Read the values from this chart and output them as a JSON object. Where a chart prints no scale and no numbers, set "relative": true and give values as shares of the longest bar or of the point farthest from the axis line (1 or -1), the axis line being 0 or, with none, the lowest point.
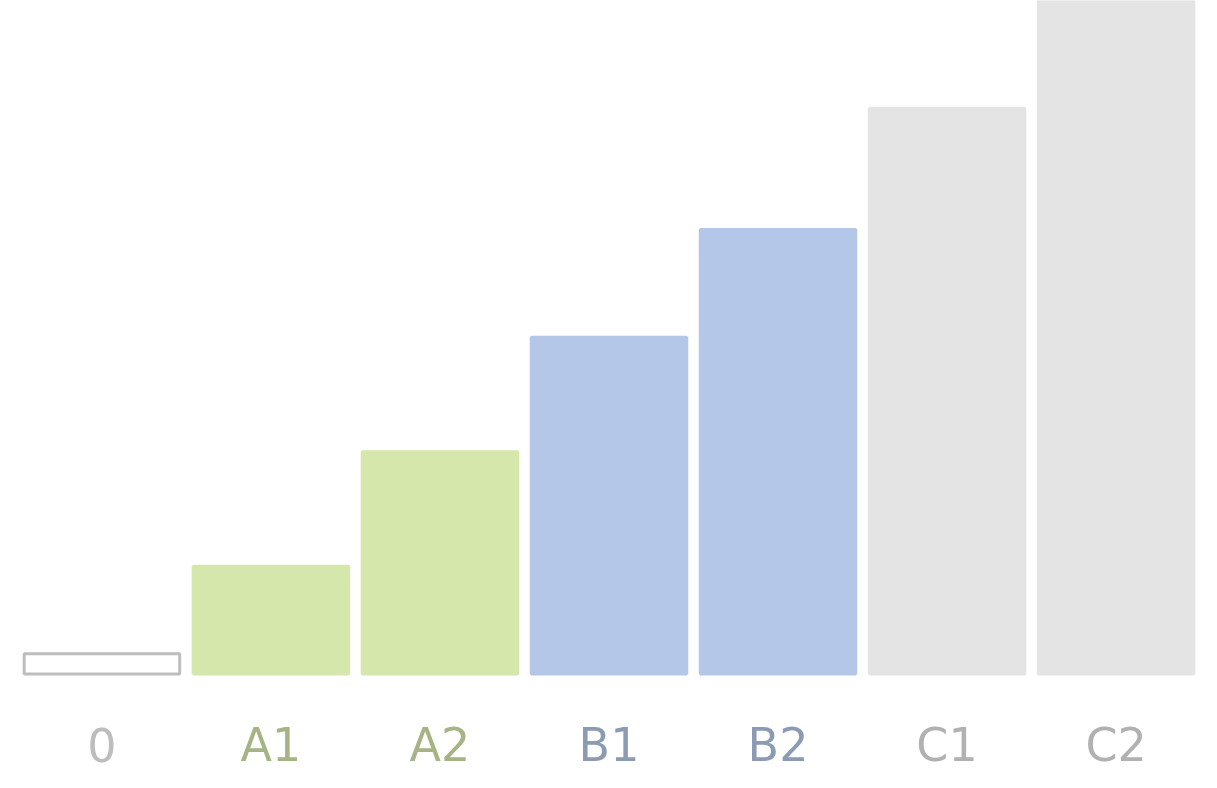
{
  "chart_data": {
    "type": "bar",
    "relative": true,
    "categories": [
      "0",
      "A1",
      "A2",
      "B1",
      "B2",
      "C1",
      "C2"
    ],
    "values": [
      0.03,
      0.16,
      0.33,
      0.5,
      0.66,
      0.84,
      1.0
    ],
    "colors": [
      "#ffffff",
      "#d6e7ab",
      "#d6e7ab",
      "#b4c7e8",
      "#b4c7e8",
      "#e4e4e4",
      "#e4e4e4"
    ],
    "grid": false
  }
}
